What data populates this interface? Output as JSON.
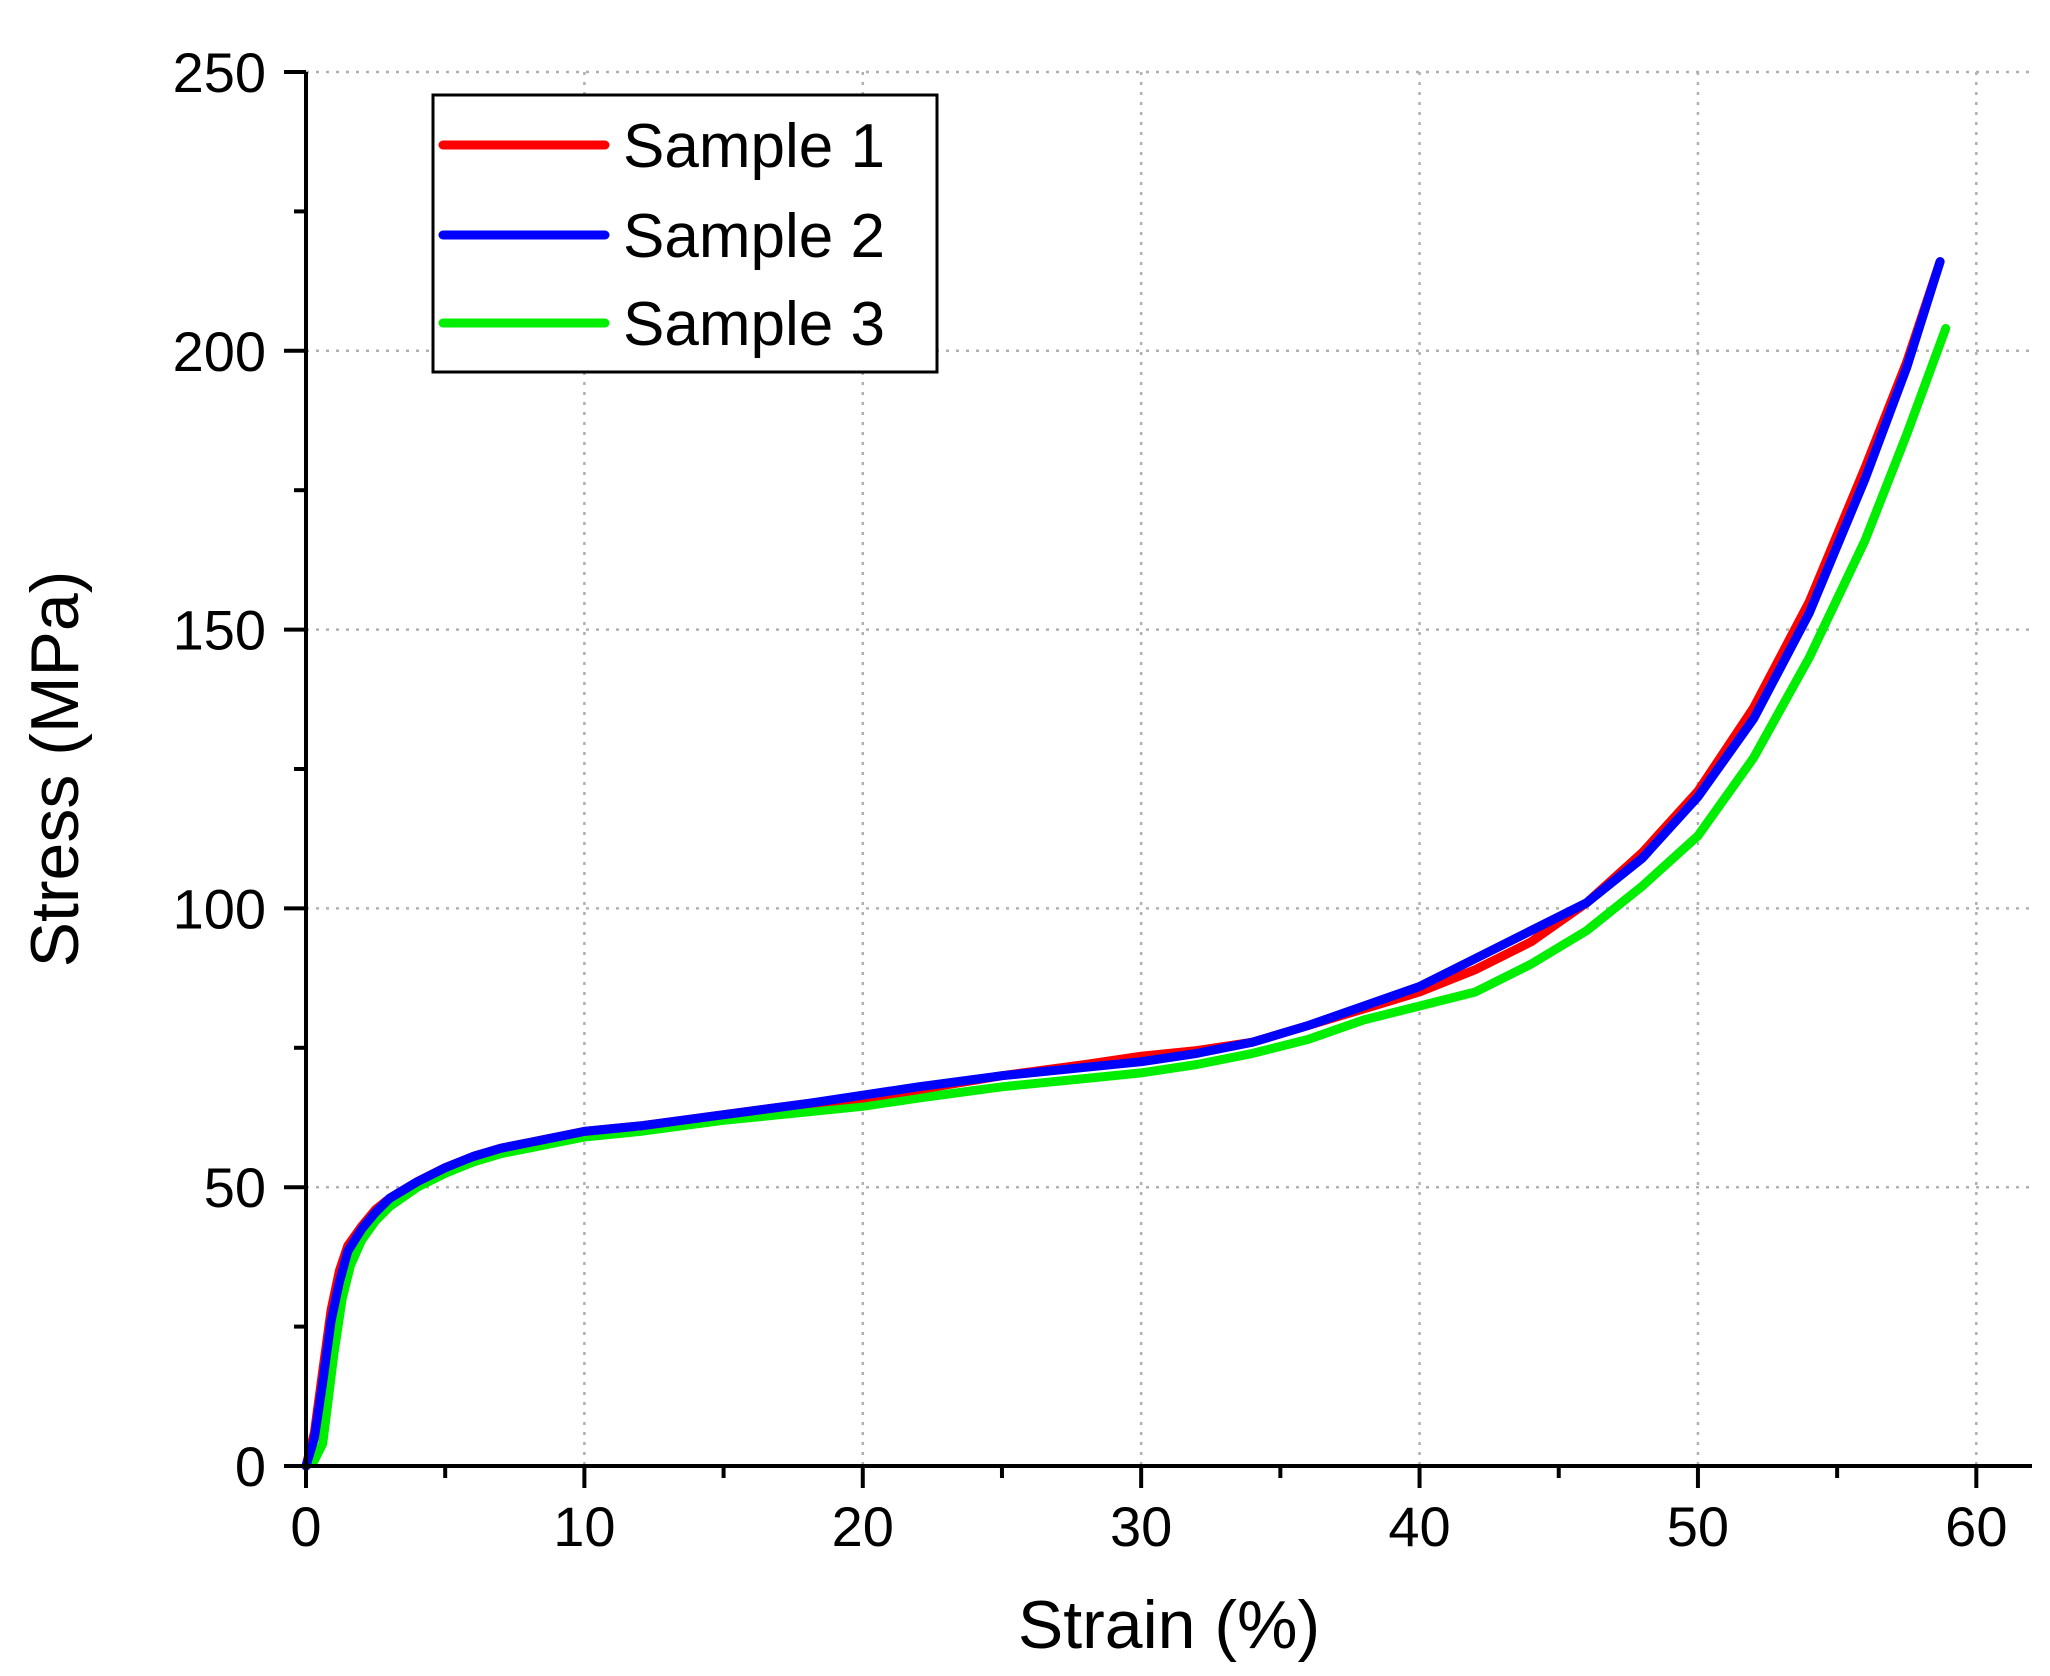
{
  "chart_data": {
    "type": "line",
    "title": "",
    "xlabel": "Strain (%)",
    "ylabel": "Stress (MPa)",
    "xlim": [
      0,
      62
    ],
    "ylim": [
      0,
      250
    ],
    "xticks": [
      0,
      10,
      20,
      30,
      40,
      50,
      60
    ],
    "yticks": [
      0,
      50,
      100,
      150,
      200,
      250
    ],
    "x_minor_step": 5,
    "y_minor_step": 25,
    "grid": true,
    "legend_position": "top-left",
    "series": [
      {
        "name": "Sample 1",
        "color": "#ff0000",
        "x": [
          0,
          0.3,
          0.6,
          0.9,
          1.2,
          1.5,
          2,
          2.5,
          3,
          4,
          5,
          6,
          7,
          8,
          10,
          12,
          15,
          18,
          20,
          22,
          25,
          28,
          30,
          32,
          34,
          36,
          38,
          40,
          42,
          44,
          46,
          48,
          50,
          52,
          54,
          56,
          57.5,
          58.7
        ],
        "y": [
          0,
          6,
          17,
          28,
          35,
          39.5,
          43,
          46,
          48,
          51,
          53.5,
          55.5,
          57,
          58,
          60,
          61,
          63,
          65,
          66,
          67.5,
          70,
          72,
          73.5,
          74.5,
          76,
          79,
          82,
          85,
          89,
          94,
          101,
          110,
          121,
          136,
          155,
          179,
          198,
          216
        ]
      },
      {
        "name": "Sample 2",
        "color": "#0000ff",
        "x": [
          0,
          0.3,
          0.6,
          0.9,
          1.2,
          1.5,
          2,
          2.5,
          3,
          4,
          5,
          6,
          7,
          8,
          10,
          12,
          15,
          18,
          20,
          22,
          25,
          28,
          30,
          32,
          34,
          36,
          38,
          40,
          42,
          44,
          46,
          48,
          50,
          52,
          54,
          56,
          57.5,
          58.7
        ],
        "y": [
          0,
          5,
          15,
          26,
          33,
          38.5,
          42.5,
          45.5,
          48,
          51,
          53.5,
          55.5,
          57,
          58,
          60,
          61,
          63,
          65,
          66.5,
          68,
          70,
          71.5,
          72.5,
          74,
          76,
          79,
          82.5,
          86,
          91,
          96,
          101,
          109,
          120,
          134,
          153,
          177,
          197,
          216
        ]
      },
      {
        "name": "Sample 3",
        "color": "#00ee00",
        "x": [
          0,
          0.3,
          0.6,
          0.8,
          1.0,
          1.3,
          1.6,
          2,
          2.5,
          3,
          4,
          5,
          6,
          7,
          8,
          10,
          12,
          15,
          18,
          20,
          22,
          25,
          28,
          30,
          32,
          34,
          36,
          38,
          40,
          42,
          44,
          46,
          48,
          50,
          52,
          54,
          56,
          57.5,
          58.9
        ],
        "y": [
          0,
          1,
          4,
          12,
          20,
          30,
          36,
          40.5,
          44,
          46.5,
          50,
          52.5,
          54.5,
          56,
          57,
          59,
          60,
          62,
          63.5,
          64.5,
          66,
          68,
          69.5,
          70.5,
          72,
          74,
          76.5,
          80,
          82.5,
          85,
          90,
          96,
          104,
          113,
          127,
          145,
          166,
          185,
          204
        ]
      }
    ]
  }
}
